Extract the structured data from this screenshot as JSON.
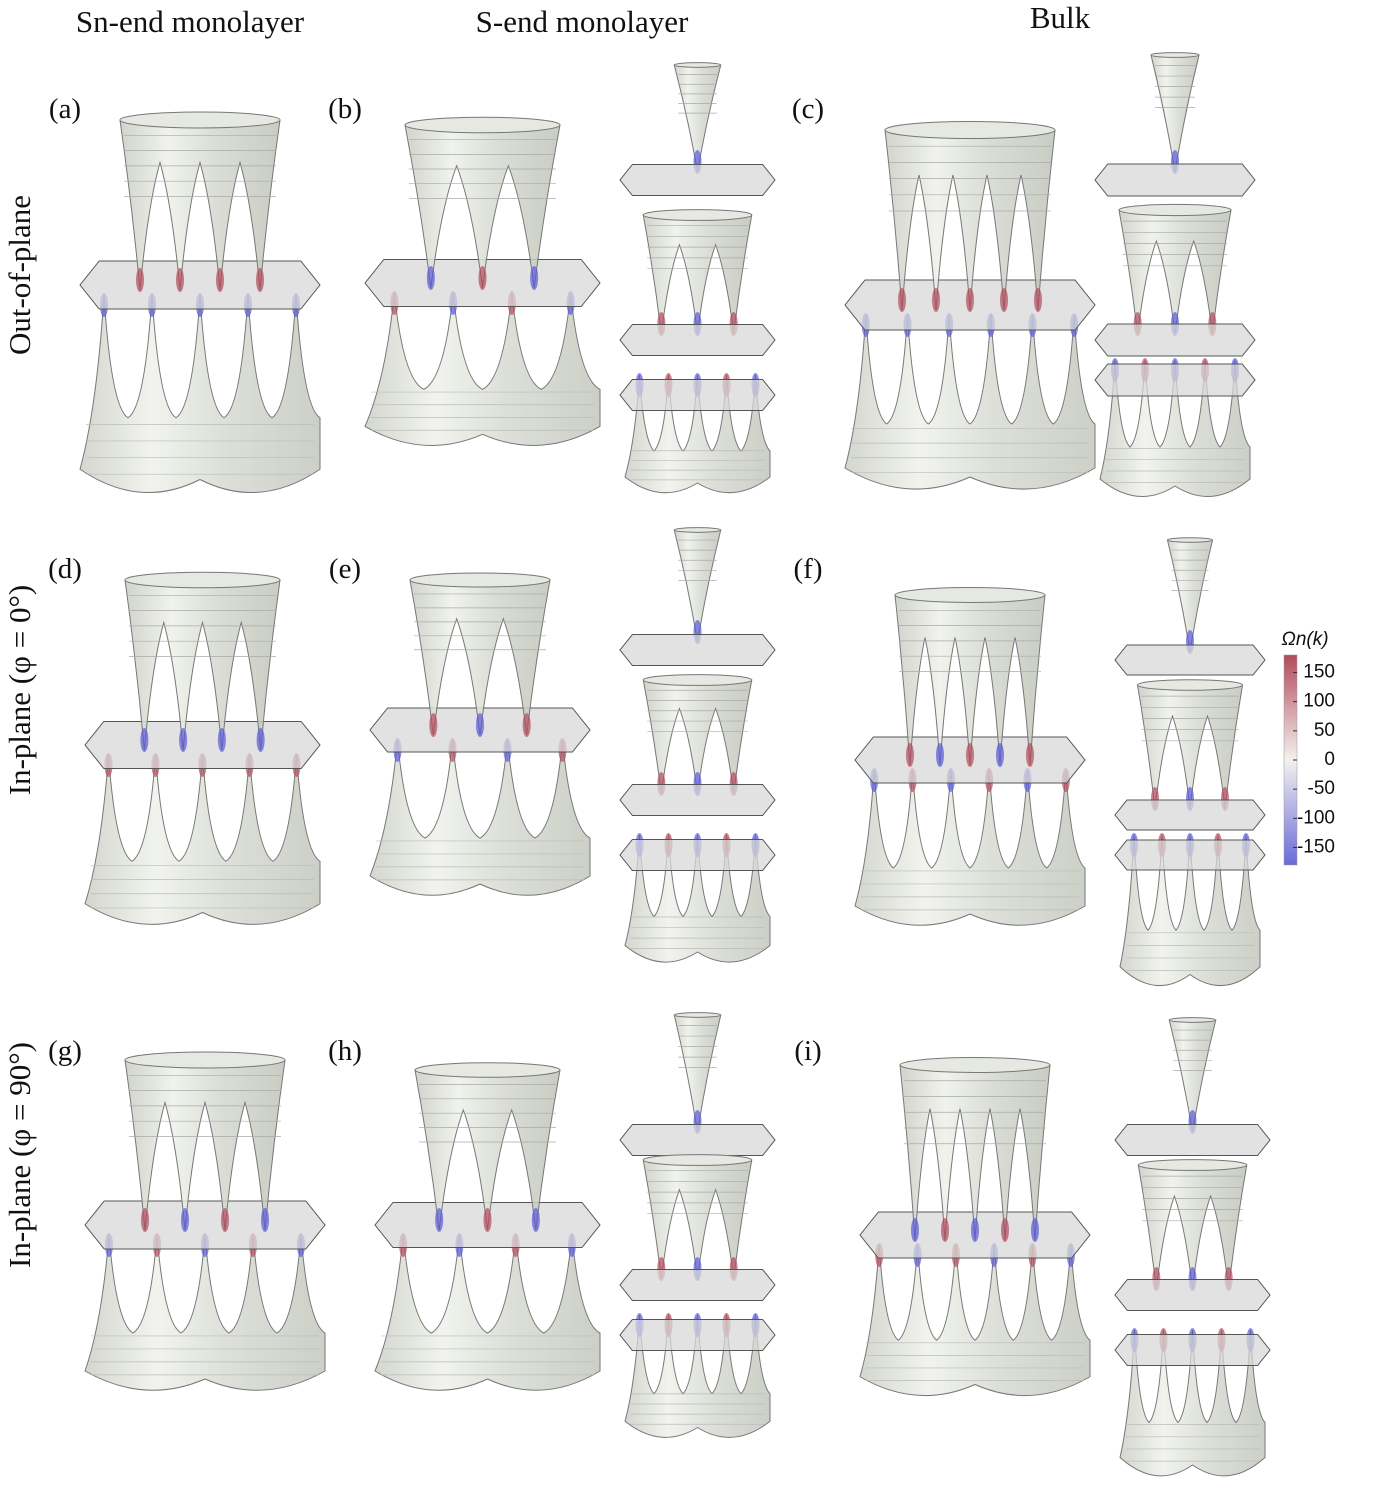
{
  "headers": [
    "Sn-end monolayer",
    "S-end monolayer",
    "Bulk"
  ],
  "row_labels": [
    {
      "text": "Out-of-plane",
      "color": "#111111"
    },
    {
      "text": "In-plane (φ = 0°)",
      "color": "#2233dd"
    },
    {
      "text": "In-plane (φ = 90°)",
      "color": "#dd2222"
    }
  ],
  "panel_labels": [
    "(a)",
    "(b)",
    "(c)",
    "(d)",
    "(e)",
    "(f)",
    "(g)",
    "(h)",
    "(i)"
  ],
  "colorbar": {
    "label": "Ωn(k)",
    "range": [
      -180,
      180
    ],
    "ticks": [
      150,
      100,
      50,
      0,
      -50,
      -100,
      -150
    ]
  }
}
